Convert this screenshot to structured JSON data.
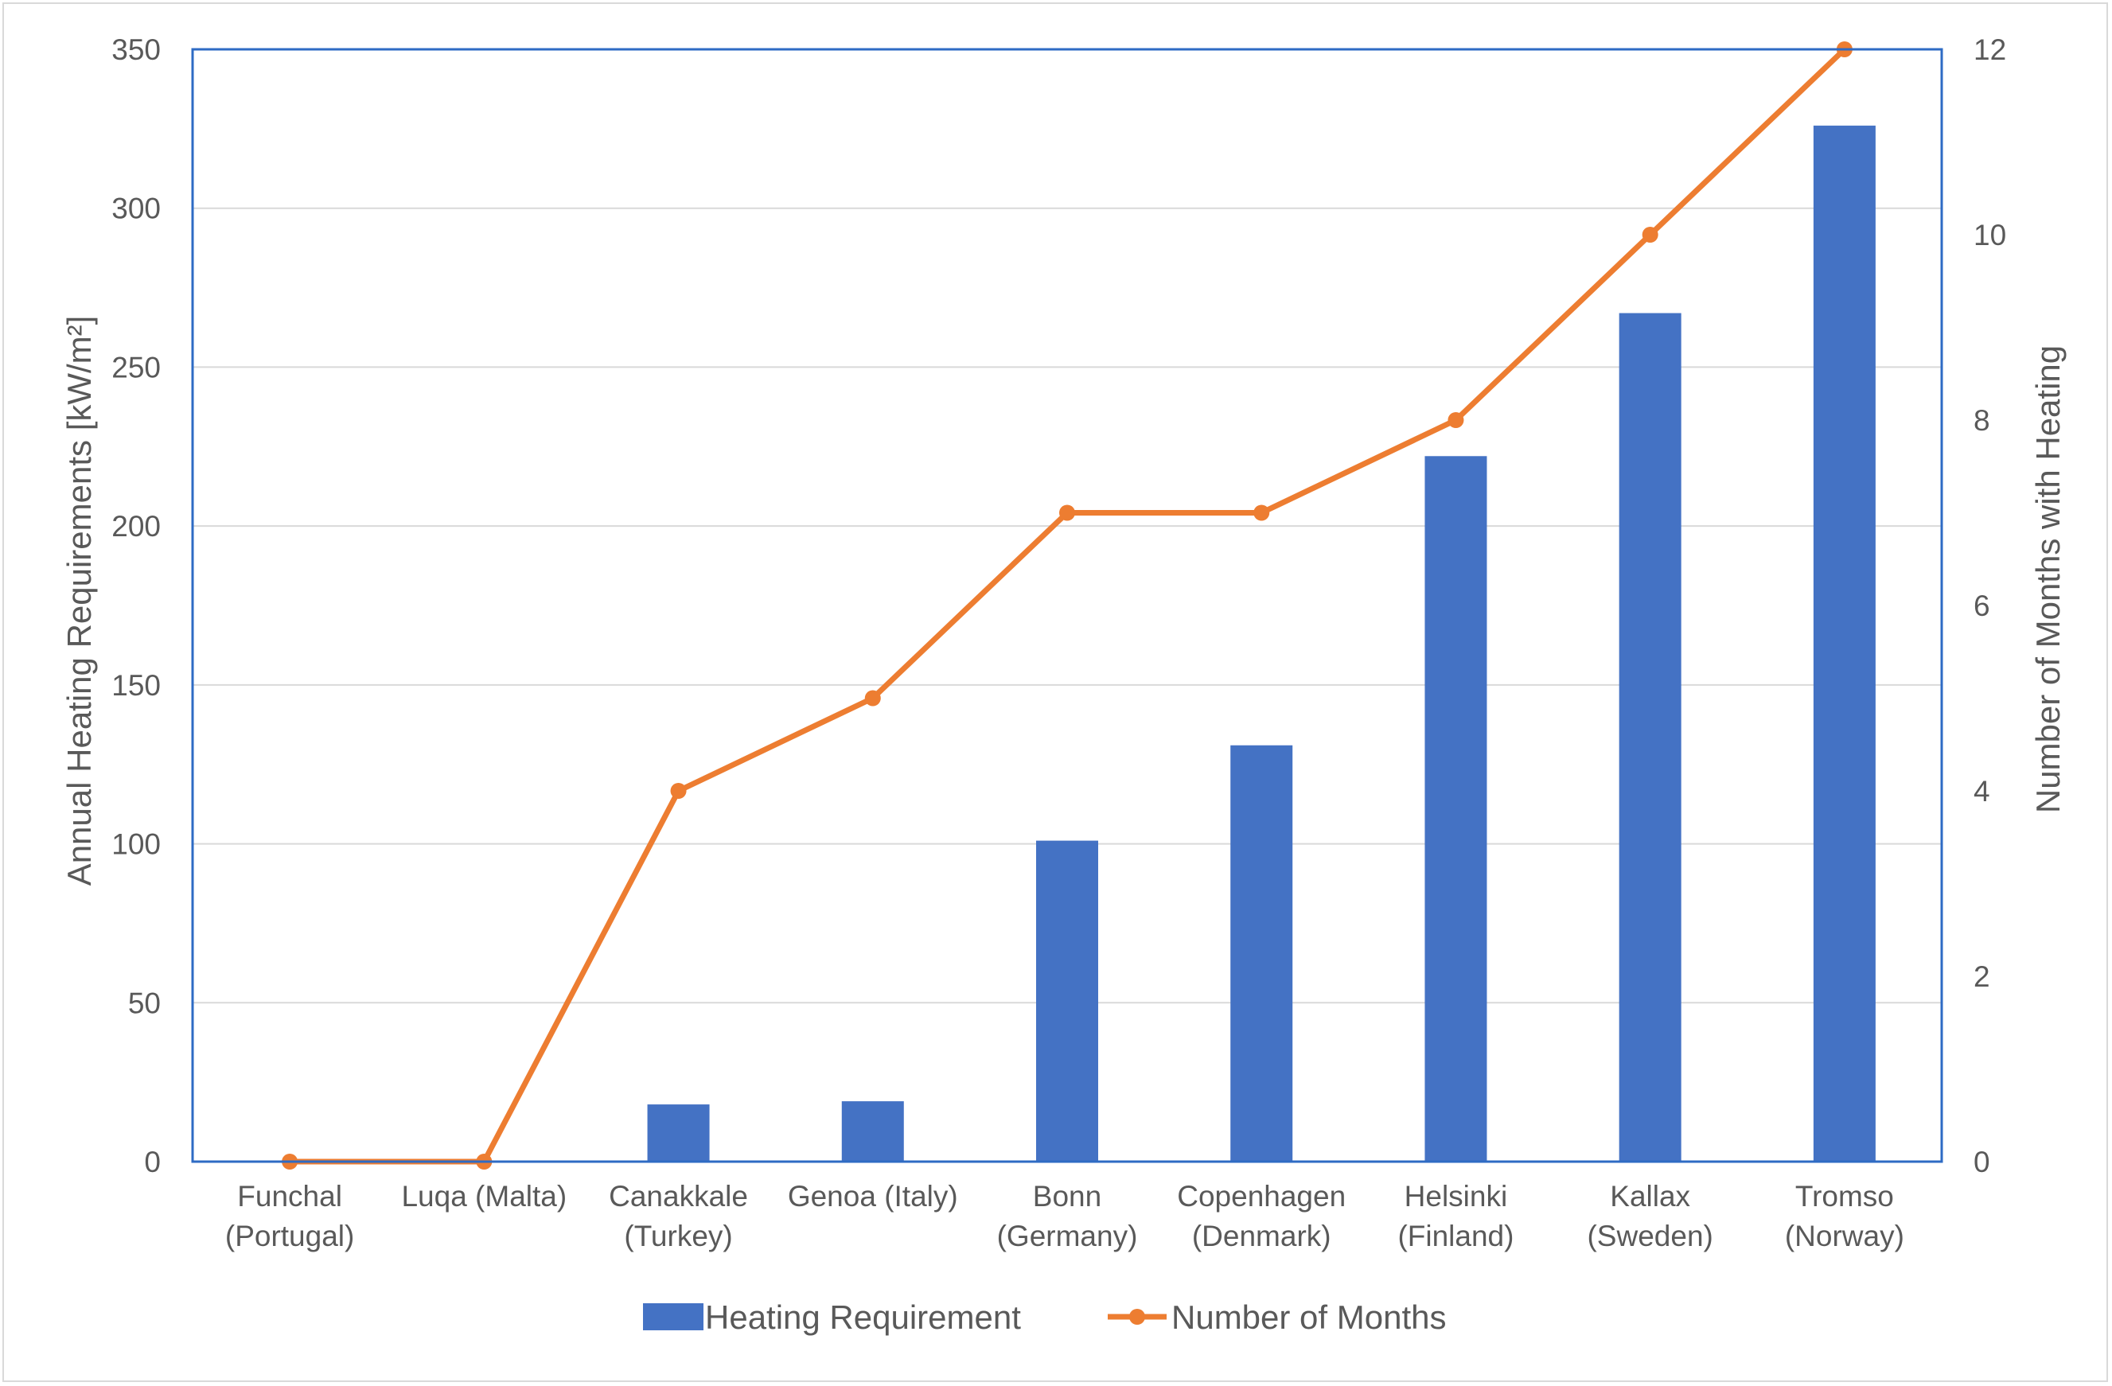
{
  "colors": {
    "bar": "#4472C4",
    "line": "#ED7D31",
    "grid": "#d9d9d9",
    "plot_border": "#2e6bc4",
    "text": "#595959"
  },
  "chart_data": {
    "type": "bar",
    "combo": "bar + line (secondary axis)",
    "title": "",
    "categories": [
      [
        "Funchal",
        "(Portugal)"
      ],
      [
        "Luqa (Malta)"
      ],
      [
        "Canakkale",
        "(Turkey)"
      ],
      [
        "Genoa (Italy)"
      ],
      [
        "Bonn",
        "(Germany)"
      ],
      [
        "Copenhagen",
        "(Denmark)"
      ],
      [
        "Helsinki",
        "(Finland)"
      ],
      [
        "Kallax",
        "(Sweden)"
      ],
      [
        "Tromso",
        "(Norway)"
      ]
    ],
    "series": [
      {
        "name": "Heating Requirement",
        "type": "bar",
        "axis": "left",
        "values": [
          0,
          0,
          18,
          19,
          101,
          131,
          222,
          267,
          326
        ]
      },
      {
        "name": "Number of Months",
        "type": "line",
        "axis": "right",
        "values": [
          0,
          0,
          4,
          5,
          7,
          7,
          8,
          10,
          12
        ]
      }
    ],
    "ylabel": "Annual Heating Requirements [kW/m²]",
    "y2label": "Number of Months with Heating",
    "ylim": [
      0,
      350
    ],
    "yticks": [
      0,
      50,
      100,
      150,
      200,
      250,
      300,
      350
    ],
    "y2lim": [
      0,
      12
    ],
    "y2ticks": [
      0,
      2,
      4,
      6,
      8,
      10,
      12
    ],
    "grid": true,
    "legend_position": "bottom"
  }
}
